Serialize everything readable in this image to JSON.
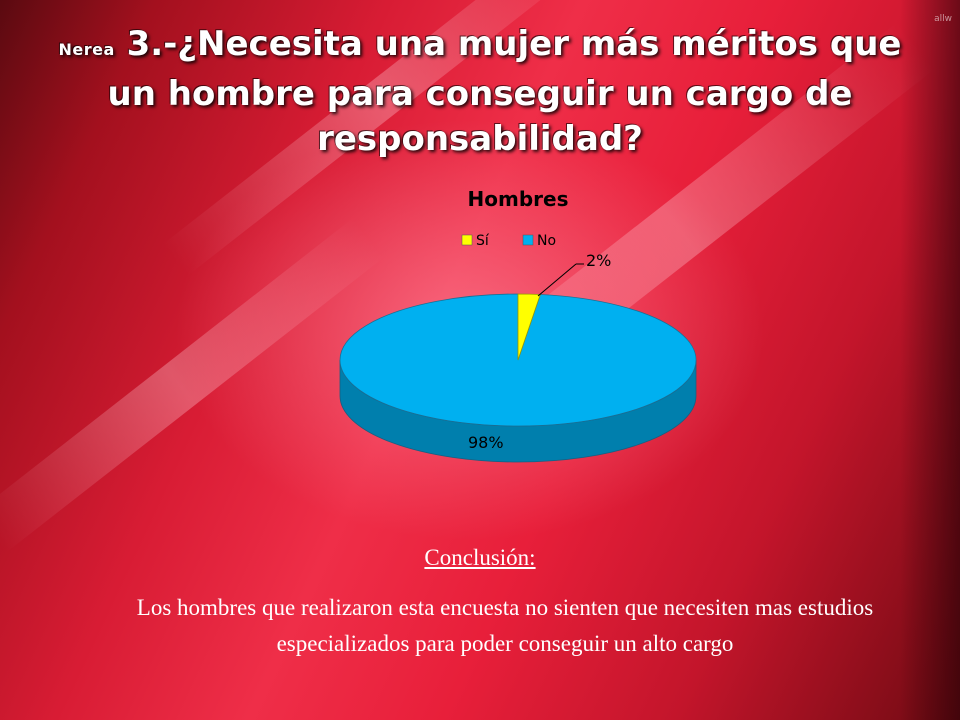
{
  "slide": {
    "author": "Nerea",
    "title_main": "3.-¿Necesita una mujer más méritos que un hombre para conseguir un cargo de responsabilidad?",
    "corner_mark": "allw"
  },
  "chart_data": {
    "type": "pie",
    "title": "Hombres",
    "categories": [
      "Sí",
      "No"
    ],
    "values": [
      2,
      98
    ],
    "unit": "%",
    "data_labels": [
      "2%",
      "98%"
    ],
    "colors": [
      "#ffff00",
      "#00b0f0"
    ],
    "legend_position": "top",
    "style": "3d"
  },
  "conclusion": {
    "heading": "Conclusión:",
    "body": "Los hombres que realizaron esta encuesta no sienten que necesiten mas estudios especializados para poder conseguir un alto cargo"
  }
}
